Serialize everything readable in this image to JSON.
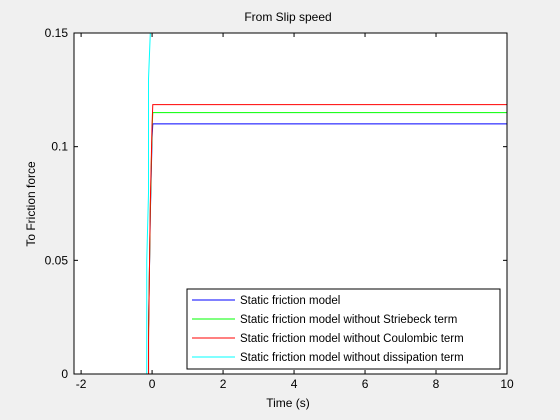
{
  "chart_data": {
    "type": "line",
    "title": "From Slip speed",
    "xlabel": "Time (s)",
    "ylabel": "To Friction force",
    "xlim": [
      -2.2,
      10
    ],
    "ylim": [
      0,
      0.15
    ],
    "xticks": [
      -2,
      0,
      2,
      4,
      6,
      8,
      10
    ],
    "xtick_labels": [
      "-2",
      "0",
      "2",
      "4",
      "6",
      "8",
      "10"
    ],
    "yticks": [
      0,
      0.05,
      0.1,
      0.15
    ],
    "ytick_labels": [
      "0",
      "0.05",
      "0.1",
      "0.15"
    ],
    "grid": false,
    "legend_position": "bottom-right",
    "series": [
      {
        "name": "Static friction model",
        "color": "#0000ff",
        "x": [
          -0.1,
          -0.1,
          -0.05,
          0,
          0.02,
          10
        ],
        "y": [
          0,
          0.02,
          0.07,
          0.104,
          0.11,
          0.11
        ]
      },
      {
        "name": "Static friction model without Striebeck term",
        "color": "#00ff00",
        "x": [
          -0.1,
          -0.1,
          -0.05,
          0,
          0.02,
          10
        ],
        "y": [
          0,
          0.02,
          0.072,
          0.108,
          0.115,
          0.115
        ]
      },
      {
        "name": "Static friction model without Coulombic term",
        "color": "#ff0000",
        "x": [
          -0.1,
          -0.1,
          -0.05,
          0,
          0.02,
          10
        ],
        "y": [
          0,
          0.015,
          0.075,
          0.11,
          0.1185,
          0.1185
        ]
      },
      {
        "name": "Static friction model without dissipation term",
        "color": "#00ffff",
        "x": [
          -0.15,
          -0.15,
          -0.1,
          -0.1,
          -0.05
        ],
        "y": [
          0,
          0.05,
          0.08,
          0.13,
          0.15
        ]
      }
    ]
  }
}
